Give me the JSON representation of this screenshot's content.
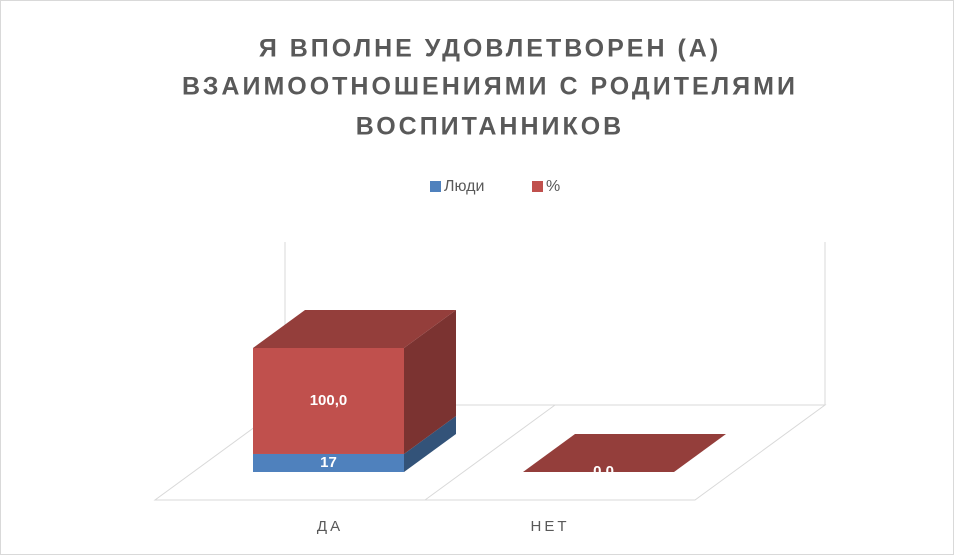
{
  "chart_data": {
    "type": "bar3d_stacked",
    "title": [
      "Я ВПОЛНЕ УДОВЛЕТВОРЕН (А)",
      "ВЗАИМООТНОШЕНИЯМИ С РОДИТЕЛЯМИ",
      "ВОСПИТАННИКОВ"
    ],
    "categories": [
      "ДА",
      "НЕТ"
    ],
    "series": [
      {
        "name": "Люди",
        "color": "#4f81bd",
        "values": [
          17,
          0
        ],
        "value_labels": [
          "17",
          "0"
        ]
      },
      {
        "name": "%",
        "color": "#c0504d",
        "values": [
          100,
          0
        ],
        "value_labels": [
          "100,0",
          "0,0"
        ]
      }
    ],
    "legend": "top"
  }
}
